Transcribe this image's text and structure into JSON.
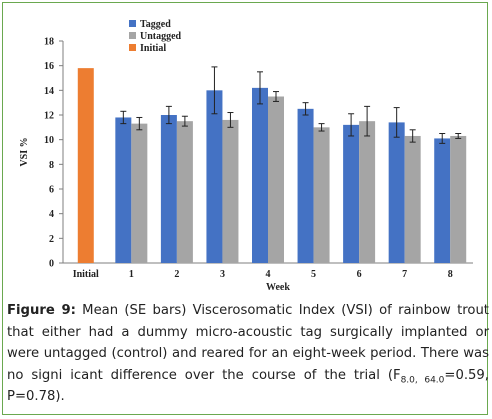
{
  "chart_data": {
    "type": "bar",
    "xlabel": "Week",
    "ylabel": "VSI %",
    "ylim": [
      0,
      18
    ],
    "yticks": [
      "0",
      "2",
      "4",
      "6",
      "8",
      "10",
      "12",
      "14",
      "16",
      "18"
    ],
    "categories": [
      "Initial",
      "1",
      "2",
      "3",
      "4",
      "5",
      "6",
      "7",
      "8"
    ],
    "series": [
      {
        "name": "Tagged",
        "color": "#4472c4",
        "values": [
          null,
          11.8,
          12.0,
          14.0,
          14.2,
          12.5,
          11.2,
          11.4,
          10.1
        ],
        "errors": [
          null,
          0.5,
          0.7,
          1.9,
          1.3,
          0.5,
          0.9,
          1.2,
          0.4
        ]
      },
      {
        "name": "Untagged",
        "color": "#a5a5a5",
        "values": [
          null,
          11.3,
          11.5,
          11.6,
          13.5,
          11.0,
          11.5,
          10.3,
          10.3
        ],
        "errors": [
          null,
          0.5,
          0.4,
          0.6,
          0.4,
          0.3,
          1.2,
          0.5,
          0.2
        ]
      },
      {
        "name": "Initial",
        "color": "#ed7d31",
        "values": [
          15.8,
          null,
          null,
          null,
          null,
          null,
          null,
          null,
          null
        ],
        "errors": [
          null,
          null,
          null,
          null,
          null,
          null,
          null,
          null,
          null
        ]
      }
    ],
    "legend": "top-left",
    "grid": false
  },
  "caption": {
    "label": "Figure 9:",
    "text_before_sub": " Mean (SE bars) Viscerosomatic Index (VSI) of rainbow trout that either had a dummy micro-acoustic tag surgically implanted or were untagged (control) and reared for an eight-week period. There was no signi icant difference over the course of the trial (F",
    "subscript": "8.0, 64.0",
    "text_after_sub": "=0.59, P=0.78)."
  }
}
